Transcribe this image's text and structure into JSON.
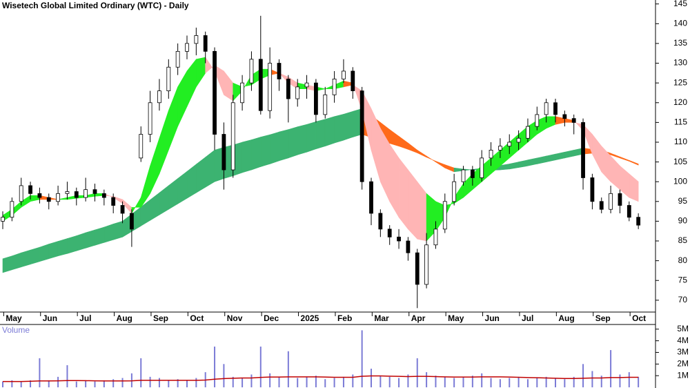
{
  "chart_data": {
    "type": "candlestick",
    "title": "Wisetech Global Limited Ordinary (WTC) - Daily",
    "ylim": [
      67,
      146
    ],
    "yticks": [
      70,
      75,
      80,
      85,
      90,
      95,
      100,
      105,
      110,
      115,
      120,
      125,
      130,
      135,
      140,
      145
    ],
    "xlim": [
      0,
      70
    ],
    "xticks": [
      {
        "value": 1,
        "label": "May"
      },
      {
        "value": 5,
        "label": "Jun"
      },
      {
        "value": 9,
        "label": "Jul"
      },
      {
        "value": 13,
        "label": "Aug"
      },
      {
        "value": 17,
        "label": "Sep"
      },
      {
        "value": 21,
        "label": "Oct"
      },
      {
        "value": 25,
        "label": "Nov"
      },
      {
        "value": 29,
        "label": "Dec"
      },
      {
        "value": 33,
        "label": "2025"
      },
      {
        "value": 37,
        "label": "Feb"
      },
      {
        "value": 41,
        "label": "Mar"
      },
      {
        "value": 45,
        "label": "Apr"
      },
      {
        "value": 49,
        "label": "May"
      },
      {
        "value": 53,
        "label": "Jun"
      },
      {
        "value": 57,
        "label": "Jul"
      },
      {
        "value": 61,
        "label": "Aug"
      },
      {
        "value": 65,
        "label": "Sep"
      },
      {
        "value": 69,
        "label": "Oct"
      }
    ],
    "candle_up_color": "#ffffff",
    "candle_down_color": "#000000",
    "candles": [
      [
        90,
        92.5,
        88,
        91
      ],
      [
        91,
        96,
        90,
        95
      ],
      [
        95,
        101,
        94,
        99
      ],
      [
        99,
        100,
        95.5,
        97
      ],
      [
        97,
        98.5,
        94.5,
        96
      ],
      [
        96,
        97,
        93,
        95
      ],
      [
        95,
        99,
        94,
        97
      ],
      [
        97,
        100,
        95.5,
        97.5
      ],
      [
        97.5,
        98.5,
        94,
        96
      ],
      [
        96,
        101,
        95,
        98
      ],
      [
        98,
        99.5,
        95,
        97
      ],
      [
        97,
        98,
        94,
        96
      ],
      [
        96,
        97,
        92,
        94
      ],
      [
        94,
        95,
        89.5,
        92
      ],
      [
        92,
        93,
        83.5,
        88
      ],
      [
        106,
        114,
        105,
        112
      ],
      [
        112,
        123,
        110,
        120
      ],
      [
        120,
        126,
        118,
        123
      ],
      [
        123,
        131,
        121,
        129
      ],
      [
        129,
        135,
        127,
        133
      ],
      [
        133,
        137,
        131,
        135
      ],
      [
        135,
        139,
        132,
        137
      ],
      [
        137,
        138,
        130,
        133
      ],
      [
        133,
        134,
        108,
        112
      ],
      [
        112,
        115,
        98,
        103
      ],
      [
        103,
        122,
        101,
        120
      ],
      [
        120,
        127,
        118,
        125
      ],
      [
        125,
        133,
        123,
        131
      ],
      [
        131,
        142,
        117,
        118
      ],
      [
        118,
        134,
        116,
        130
      ],
      [
        130,
        131,
        123,
        126
      ],
      [
        126,
        127,
        115,
        121
      ],
      [
        121,
        126,
        119,
        124
      ],
      [
        124,
        127,
        121,
        125
      ],
      [
        125,
        126,
        115,
        117
      ],
      [
        117,
        124,
        116,
        122
      ],
      [
        122,
        128,
        120,
        126
      ],
      [
        126,
        131,
        125,
        128
      ],
      [
        128,
        129,
        121,
        123
      ],
      [
        123,
        124,
        98,
        100
      ],
      [
        100,
        101,
        89,
        92
      ],
      [
        92,
        93,
        86,
        88
      ],
      [
        88,
        89,
        84,
        86
      ],
      [
        86,
        88,
        83,
        85
      ],
      [
        85,
        86,
        80,
        82
      ],
      [
        82,
        83,
        68,
        74
      ],
      [
        74,
        87,
        73,
        84
      ],
      [
        84,
        90,
        83,
        88
      ],
      [
        88,
        97,
        87,
        95
      ],
      [
        95,
        102,
        94,
        100
      ],
      [
        100,
        104,
        99,
        103
      ],
      [
        103,
        104,
        99,
        101
      ],
      [
        101,
        108,
        100,
        106
      ],
      [
        106,
        110,
        104,
        108
      ],
      [
        108,
        111,
        106,
        109
      ],
      [
        109,
        112,
        107,
        110
      ],
      [
        110,
        113,
        108,
        111
      ],
      [
        111,
        116,
        110,
        114
      ],
      [
        114,
        119,
        113,
        117
      ],
      [
        117,
        121,
        115,
        120
      ],
      [
        120,
        121,
        115,
        117
      ],
      [
        117,
        118,
        114,
        116
      ],
      [
        116,
        117,
        112,
        115
      ],
      [
        115,
        116,
        98,
        101
      ],
      [
        101,
        102,
        93,
        95
      ],
      [
        95,
        96,
        92,
        93
      ],
      [
        93,
        99,
        92,
        97
      ],
      [
        97,
        98,
        92,
        94
      ],
      [
        94,
        95,
        90,
        91
      ],
      [
        91,
        92,
        88,
        89
      ]
    ],
    "long_band": {
      "up_color": "#3cb371",
      "down_color": "#ff6a1a",
      "cross_color": "#ff6a1a",
      "fast": [
        80.5,
        81.2,
        82,
        82.7,
        83.4,
        84.2,
        84.9,
        85.6,
        86.3,
        87.1,
        87.8,
        88.5,
        89.3,
        90,
        91.8,
        93.6,
        95.4,
        97.2,
        99,
        100.8,
        102.6,
        104.4,
        106.2,
        108,
        108.7,
        109.3,
        110,
        110.6,
        111.3,
        111.9,
        112.6,
        113.2,
        113.9,
        114.5,
        115.2,
        115.8,
        116.5,
        117.1,
        117.8,
        118.5,
        116.8,
        115,
        113.2,
        111.5,
        109.8,
        108,
        106.5,
        105,
        103.5,
        102.5,
        102.8,
        103.1,
        103.4,
        103.8,
        104.1,
        104.5,
        105,
        105.5,
        106,
        106.5,
        107,
        107.5,
        108,
        108.5,
        108.2,
        108,
        107.2,
        106.3,
        105.4,
        104.5
      ],
      "slow": [
        77,
        77.7,
        78.4,
        79.1,
        79.8,
        80.5,
        81.2,
        81.8,
        82.5,
        83.2,
        83.9,
        84.6,
        85.3,
        86,
        87.4,
        88.8,
        90.2,
        91.6,
        93,
        94.4,
        95.8,
        97.2,
        98.6,
        100,
        100.8,
        101.5,
        102.3,
        103,
        103.8,
        104.5,
        105.3,
        106,
        106.8,
        107.5,
        108.3,
        109,
        109.8,
        110.5,
        111.3,
        112,
        111.2,
        110.5,
        109.7,
        109,
        108.2,
        107.3,
        106.2,
        105.2,
        104.3,
        103.5,
        103.2,
        103,
        102.9,
        102.9,
        103,
        103.2,
        103.6,
        104,
        104.5,
        105,
        105.5,
        106,
        106.5,
        107,
        107.2,
        107.2,
        106.8,
        106,
        105.2,
        104.2
      ]
    },
    "short_band": {
      "up_color": "#22ee22",
      "down_color": "#ffb5b5",
      "cross_color": "#ff6a1a",
      "fast": [
        91.5,
        93,
        95,
        96.5,
        96.5,
        96,
        95.5,
        96,
        96.5,
        96.5,
        97,
        97,
        96,
        94.5,
        92,
        96,
        104,
        111,
        118,
        124,
        128,
        131,
        131.5,
        128,
        122,
        120.5,
        123,
        127,
        128.5,
        128.5,
        127.5,
        125,
        123.5,
        123.5,
        123,
        123.5,
        124.5,
        125.5,
        125,
        118,
        108,
        100,
        95,
        91,
        88,
        85.5,
        85,
        87.5,
        91,
        96,
        99.5,
        102,
        104,
        106,
        108,
        110,
        112,
        114,
        115.5,
        116.5,
        116.5,
        116,
        115.5,
        113,
        107,
        102.5,
        100,
        98,
        96,
        95
      ],
      "slow": [
        90,
        91.5,
        93.5,
        95,
        95.5,
        95.5,
        95.5,
        95.5,
        95.8,
        96,
        96.3,
        96.5,
        96.3,
        95.5,
        93.5,
        93.5,
        97,
        102,
        108,
        114,
        119,
        124,
        127.5,
        129.5,
        128,
        125,
        124,
        124.5,
        126,
        127,
        127.5,
        126.5,
        125,
        124.5,
        124,
        123.5,
        123.5,
        124,
        124.5,
        123,
        118.5,
        113.5,
        109.5,
        106,
        103,
        100,
        97,
        95,
        94,
        94.5,
        96,
        98,
        100,
        102,
        104,
        106,
        108,
        110,
        112,
        113.5,
        114.5,
        115,
        115,
        114.5,
        112,
        109,
        106.5,
        104,
        102,
        100
      ]
    },
    "volume": {
      "label": "Volume",
      "color": "#7b7bd6",
      "avg_color": "#c00000",
      "ylim": [
        0,
        5.4
      ],
      "yticks": [
        {
          "value": 1,
          "label": "1M"
        },
        {
          "value": 2,
          "label": "2M"
        },
        {
          "value": 3,
          "label": "3M"
        },
        {
          "value": 4,
          "label": "4M"
        },
        {
          "value": 5,
          "label": "5M"
        }
      ],
      "values": [
        0.5,
        0.6,
        0.5,
        0.6,
        2.5,
        0.6,
        0.9,
        1.9,
        0.5,
        0.6,
        0.5,
        0.6,
        0.7,
        0.8,
        1.2,
        2.5,
        0.9,
        0.8,
        0.6,
        0.7,
        0.6,
        0.8,
        1.3,
        3.5,
        2.0,
        0.9,
        0.8,
        1.1,
        3.5,
        1.2,
        0.9,
        3.1,
        0.8,
        0.9,
        1.0,
        0.7,
        0.8,
        0.9,
        1.1,
        4.9,
        1.6,
        1.0,
        0.9,
        0.8,
        1.1,
        2.5,
        1.3,
        1.0,
        0.9,
        0.8,
        0.9,
        1.0,
        1.2,
        0.8,
        0.7,
        0.8,
        0.9,
        0.7,
        0.8,
        0.9,
        0.8,
        0.7,
        0.9,
        2.0,
        1.4,
        1.0,
        3.2,
        1.1,
        1.3,
        0.9
      ],
      "avg": [
        0.5,
        0.5,
        0.5,
        0.52,
        0.55,
        0.55,
        0.56,
        0.58,
        0.58,
        0.57,
        0.56,
        0.55,
        0.55,
        0.55,
        0.56,
        0.6,
        0.6,
        0.6,
        0.6,
        0.6,
        0.6,
        0.6,
        0.62,
        0.7,
        0.75,
        0.78,
        0.8,
        0.8,
        0.85,
        0.88,
        0.88,
        0.9,
        0.9,
        0.9,
        0.9,
        0.88,
        0.86,
        0.86,
        0.86,
        0.95,
        0.98,
        0.98,
        0.96,
        0.94,
        0.92,
        0.94,
        0.94,
        0.92,
        0.9,
        0.88,
        0.88,
        0.88,
        0.9,
        0.9,
        0.9,
        0.88,
        0.86,
        0.84,
        0.82,
        0.8,
        0.78,
        0.76,
        0.76,
        0.78,
        0.8,
        0.8,
        0.84,
        0.84,
        0.86,
        0.86
      ]
    }
  }
}
